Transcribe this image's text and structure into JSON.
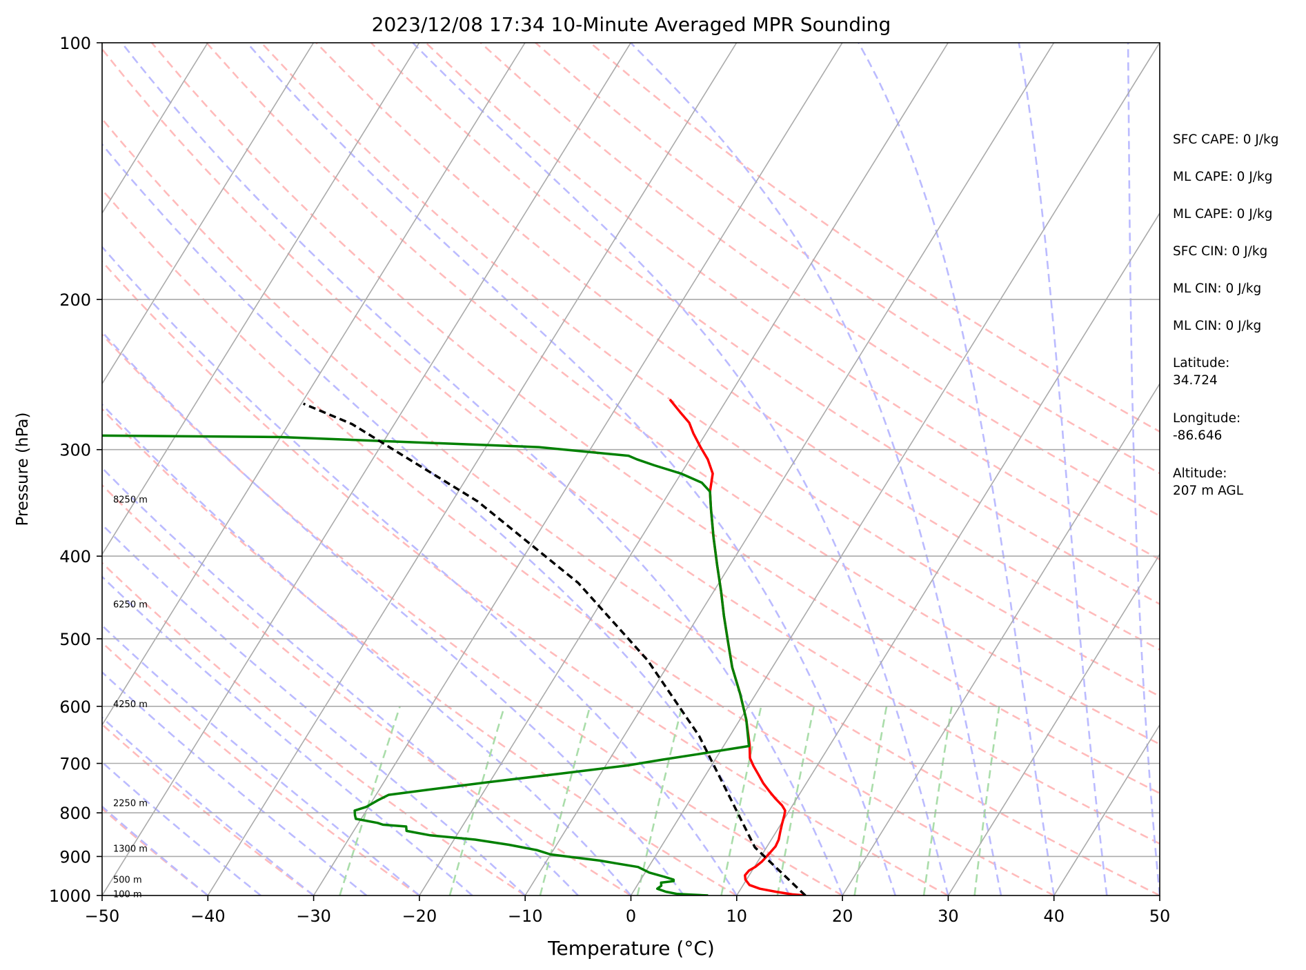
{
  "chart_data": {
    "type": "line",
    "subtype": "skew-t log-p sounding",
    "title": "2023/12/08 17:34 10-Minute Averaged MPR Sounding",
    "xlabel": "Temperature (°C)",
    "ylabel": "Pressure (hPa)",
    "xlim": [
      -50,
      50
    ],
    "ylim": [
      1000,
      100
    ],
    "y_scale": "log",
    "grid": true,
    "x_ticks": [
      "−50",
      "−40",
      "−30",
      "−20",
      "−10",
      "0",
      "10",
      "20",
      "30",
      "40",
      "50"
    ],
    "y_ticks": [
      "100",
      "200",
      "300",
      "400",
      "500",
      "600",
      "700",
      "800",
      "900",
      "1000"
    ],
    "series": [
      {
        "style": "solid",
        "color": "#ff0000",
        "points": [
          [
            16.5,
            1000
          ],
          [
            15.2,
            997
          ],
          [
            13.5,
            990
          ],
          [
            11.8,
            982
          ],
          [
            10.6,
            972
          ],
          [
            9.9,
            958
          ],
          [
            9.6,
            947
          ],
          [
            9.7,
            935
          ],
          [
            10.1,
            925
          ],
          [
            10.4,
            912
          ],
          [
            10.6,
            895
          ],
          [
            10.8,
            876
          ],
          [
            10.7,
            860
          ],
          [
            10.4,
            843
          ],
          [
            10.1,
            825
          ],
          [
            9.8,
            805
          ],
          [
            9.6,
            795
          ],
          [
            9.0,
            784
          ],
          [
            8.0,
            770
          ],
          [
            7.0,
            755
          ],
          [
            5.9,
            738
          ],
          [
            5.0,
            722
          ],
          [
            4.0,
            705
          ],
          [
            3.2,
            690
          ],
          [
            2.7,
            675
          ],
          [
            2.4,
            666
          ],
          [
            0.6,
            622
          ],
          [
            -1.5,
            580
          ],
          [
            -3.8,
            540
          ],
          [
            -5.7,
            504
          ],
          [
            -7.6,
            470
          ],
          [
            -9.3,
            440
          ],
          [
            -11.2,
            410
          ],
          [
            -13.2,
            380
          ],
          [
            -15.1,
            352
          ],
          [
            -16.2,
            336
          ],
          [
            -17.0,
            320
          ],
          [
            -18.3,
            308
          ],
          [
            -19.7,
            298
          ],
          [
            -21.2,
            287
          ],
          [
            -22.2,
            279
          ],
          [
            -23.7,
            271
          ],
          [
            -25.4,
            262
          ]
        ]
      },
      {
        "style": "solid",
        "color": "#008000",
        "points": [
          [
            7.3,
            1000
          ],
          [
            5.8,
            998
          ],
          [
            4.3,
            996
          ],
          [
            3.1,
            990
          ],
          [
            2.1,
            982
          ],
          [
            2.3,
            974
          ],
          [
            2.1,
            966
          ],
          [
            3.2,
            962
          ],
          [
            3.1,
            958
          ],
          [
            2.1,
            951
          ],
          [
            0.4,
            940
          ],
          [
            -1.0,
            926
          ],
          [
            -5.0,
            910
          ],
          [
            -10.0,
            895
          ],
          [
            -11.5,
            885
          ],
          [
            -14.5,
            872
          ],
          [
            -18.0,
            860
          ],
          [
            -22.5,
            850
          ],
          [
            -25.0,
            840
          ],
          [
            -25.3,
            830
          ],
          [
            -27.6,
            826
          ],
          [
            -28.2,
            822
          ],
          [
            -30.5,
            813
          ],
          [
            -30.8,
            805
          ],
          [
            -31.1,
            795
          ],
          [
            -30.2,
            787
          ],
          [
            -29.5,
            773
          ],
          [
            -28.8,
            762
          ],
          [
            -25.5,
            752
          ],
          [
            -20.0,
            736
          ],
          [
            -14.0,
            720
          ],
          [
            -8.0,
            704
          ],
          [
            -5.0,
            693
          ],
          [
            -2.0,
            683
          ],
          [
            2.4,
            668
          ],
          [
            0.6,
            622
          ],
          [
            -1.5,
            580
          ],
          [
            -3.8,
            540
          ],
          [
            -5.7,
            504
          ],
          [
            -7.6,
            470
          ],
          [
            -9.3,
            440
          ],
          [
            -11.2,
            410
          ],
          [
            -13.2,
            380
          ],
          [
            -15.1,
            352
          ],
          [
            -16.2,
            336
          ],
          [
            -17.5,
            328
          ],
          [
            -20.0,
            320
          ],
          [
            -23.0,
            313
          ],
          [
            -25.0,
            308
          ],
          [
            -26.0,
            305
          ],
          [
            -35.0,
            298
          ],
          [
            -60.0,
            290
          ],
          [
            -90.0,
            288
          ]
        ]
      },
      {
        "style": "dashed",
        "color": "#000000",
        "points": [
          [
            16.5,
            1000
          ],
          [
            8.9,
            878
          ],
          [
            4.9,
            793
          ],
          [
            -2.9,
            650
          ],
          [
            -12.2,
            530
          ],
          [
            -23.3,
            430
          ],
          [
            -37.6,
            345
          ],
          [
            -47.3,
            305
          ],
          [
            -54.0,
            280
          ],
          [
            -59.8,
            265
          ]
        ]
      }
    ],
    "height_labels": [
      "8250 m",
      "6250 m",
      "4250 m",
      "2250 m",
      "1300 m",
      "500 m",
      "100 m"
    ],
    "height_label_pressures": [
      343,
      455,
      596,
      778,
      880,
      957,
      995
    ],
    "info_lines": [
      "SFC CAPE: 0 J/kg",
      "ML CAPE: 0 J/kg",
      "ML CAPE: 0 J/kg",
      "SFC CIN: 0 J/kg",
      "ML CIN: 0 J/kg",
      "ML CIN: 0 J/kg",
      "Latitude:",
      "34.724",
      "Longitude:",
      "-86.646",
      "Altitude:",
      "207 m AGL"
    ],
    "colors": {
      "isotherm": "#aaaaaa",
      "isobar": "#aaaaaa",
      "dry_adiabat": "#ffbbbb",
      "moist_adiabat": "#bbbbff",
      "mixing_ratio": "#aaddaa"
    }
  }
}
